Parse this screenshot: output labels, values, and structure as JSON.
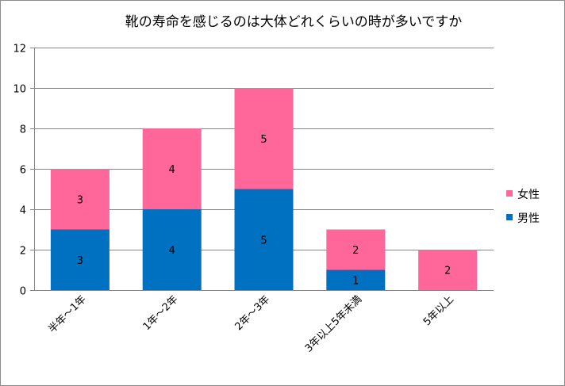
{
  "chart_data": {
    "type": "bar",
    "stacked": true,
    "title": "靴の寿命を感じるのは大体どれくらいの時が多いですか",
    "categories": [
      "半年～1年",
      "1年～2年",
      "2年～3年",
      "3年以上5年未満",
      "5年以上"
    ],
    "series": [
      {
        "name": "男性",
        "values": [
          3,
          4,
          5,
          1,
          0
        ],
        "color": "#0070C0"
      },
      {
        "name": "女性",
        "values": [
          3,
          4,
          5,
          2,
          2
        ],
        "color": "#FF6699"
      }
    ],
    "ylim": [
      0,
      12
    ],
    "yticks": [
      0,
      2,
      4,
      6,
      8,
      10,
      12
    ],
    "grid": true,
    "legend_position": "right",
    "xlabel": "",
    "ylabel": ""
  }
}
